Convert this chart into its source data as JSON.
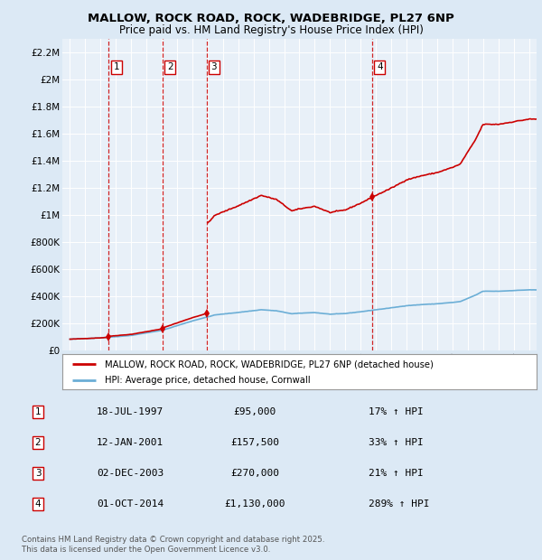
{
  "title": "MALLOW, ROCK ROAD, ROCK, WADEBRIDGE, PL27 6NP",
  "subtitle": "Price paid vs. HM Land Registry's House Price Index (HPI)",
  "bg_color": "#dce9f5",
  "plot_bg_color": "#dce9f5",
  "chart_area_color": "#e8f0f8",
  "grid_color": "#ffffff",
  "sale_dates": [
    1997.54,
    2001.04,
    2003.92,
    2014.75
  ],
  "sale_prices": [
    95000,
    157500,
    270000,
    1130000
  ],
  "sale_labels": [
    "1",
    "2",
    "3",
    "4"
  ],
  "legend_property": "MALLOW, ROCK ROAD, ROCK, WADEBRIDGE, PL27 6NP (detached house)",
  "legend_hpi": "HPI: Average price, detached house, Cornwall",
  "table_data": [
    [
      "1",
      "18-JUL-1997",
      "£95,000",
      "17% ↑ HPI"
    ],
    [
      "2",
      "12-JAN-2001",
      "£157,500",
      "33% ↑ HPI"
    ],
    [
      "3",
      "02-DEC-2003",
      "£270,000",
      "21% ↑ HPI"
    ],
    [
      "4",
      "01-OCT-2014",
      "£1,130,000",
      "289% ↑ HPI"
    ]
  ],
  "footnote": "Contains HM Land Registry data © Crown copyright and database right 2025.\nThis data is licensed under the Open Government Licence v3.0.",
  "hpi_line_color": "#6baed6",
  "property_line_color": "#cc0000",
  "dashed_line_color": "#cc0000",
  "ylim": [
    0,
    2300000
  ],
  "xlim": [
    1994.5,
    2025.5
  ],
  "yticks": [
    0,
    200000,
    400000,
    600000,
    800000,
    1000000,
    1200000,
    1400000,
    1600000,
    1800000,
    2000000,
    2200000
  ],
  "ytick_labels": [
    "£0",
    "£200K",
    "£400K",
    "£600K",
    "£800K",
    "£1M",
    "£1.2M",
    "£1.4M",
    "£1.6M",
    "£1.8M",
    "£2M",
    "£2.2M"
  ],
  "xticks": [
    1995,
    1996,
    1997,
    1998,
    1999,
    2000,
    2001,
    2002,
    2003,
    2004,
    2005,
    2006,
    2007,
    2008,
    2009,
    2010,
    2011,
    2012,
    2013,
    2014,
    2015,
    2016,
    2017,
    2018,
    2019,
    2020,
    2021,
    2022,
    2023,
    2024,
    2025
  ]
}
